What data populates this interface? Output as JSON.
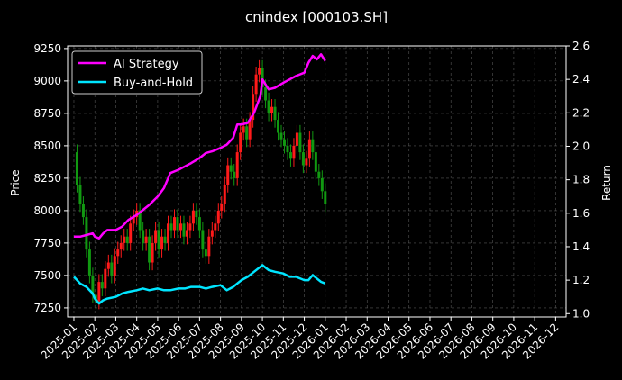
{
  "chart_data": {
    "type": "line",
    "title": "cnindex [000103.SH]",
    "ylabel_left": "Price",
    "ylabel_right": "Return",
    "left_ylim": [
      7180,
      9270
    ],
    "right_ylim": [
      0.98,
      2.6
    ],
    "left_yticks": [
      7250,
      7500,
      7750,
      8000,
      8250,
      8500,
      8750,
      9000,
      9250
    ],
    "right_yticks": [
      "1.0",
      "1.2",
      "1.4",
      "1.6",
      "1.8",
      "2.0",
      "2.2",
      "2.4",
      "2.6"
    ],
    "xlim": [
      -0.3,
      23.5
    ],
    "x_tick_labels": [
      "2025-01",
      "2025-02",
      "2025-03",
      "2025-04",
      "2025-05",
      "2025-06",
      "2025-07",
      "2025-08",
      "2025-09",
      "2025-10",
      "2025-11",
      "2025-12",
      "2026-01",
      "2026-02",
      "2026-03",
      "2026-04",
      "2026-05",
      "2026-06",
      "2026-07",
      "2026-08",
      "2026-09",
      "2026-10",
      "2026-11",
      "2026-12"
    ],
    "grid": true,
    "legend_position": "top-left",
    "colors": {
      "ai": "#ff00ff",
      "bh": "#00e5ff",
      "up": "#ff1a1a",
      "down": "#119911",
      "grid": "#555555"
    },
    "series": [
      {
        "name": "AI Strategy",
        "axis": "right",
        "color": "#ff00ff",
        "x": [
          0,
          0.3,
          0.6,
          0.9,
          1.0,
          1.2,
          1.4,
          1.6,
          2.0,
          2.3,
          2.6,
          3.0,
          3.3,
          3.6,
          4.0,
          4.3,
          4.6,
          5.0,
          5.3,
          5.6,
          6.0,
          6.3,
          6.6,
          7.0,
          7.3,
          7.6,
          7.8,
          8.0,
          8.3,
          8.6,
          8.9,
          9.0,
          9.2,
          9.3,
          9.6,
          10.0,
          10.3,
          10.6,
          11.0,
          11.2,
          11.4,
          11.6,
          11.8,
          12.0
        ],
        "values": [
          1.46,
          1.46,
          1.47,
          1.48,
          1.46,
          1.45,
          1.48,
          1.5,
          1.5,
          1.52,
          1.56,
          1.59,
          1.62,
          1.65,
          1.7,
          1.75,
          1.84,
          1.86,
          1.88,
          1.9,
          1.93,
          1.96,
          1.97,
          1.99,
          2.01,
          2.05,
          2.13,
          2.13,
          2.14,
          2.2,
          2.3,
          2.4,
          2.36,
          2.34,
          2.35,
          2.38,
          2.4,
          2.42,
          2.44,
          2.5,
          2.54,
          2.52,
          2.55,
          2.51
        ]
      },
      {
        "name": "Buy-and-Hold",
        "axis": "right",
        "color": "#00e5ff",
        "x": [
          0,
          0.3,
          0.6,
          0.9,
          1.0,
          1.2,
          1.4,
          1.6,
          2.0,
          2.3,
          2.6,
          3.0,
          3.3,
          3.6,
          4.0,
          4.3,
          4.6,
          5.0,
          5.3,
          5.6,
          6.0,
          6.3,
          6.6,
          7.0,
          7.3,
          7.6,
          7.8,
          8.0,
          8.3,
          8.6,
          8.9,
          9.0,
          9.2,
          9.3,
          9.6,
          10.0,
          10.3,
          10.6,
          11.0,
          11.2,
          11.4,
          11.6,
          11.8,
          12.0
        ],
        "values": [
          1.22,
          1.18,
          1.16,
          1.12,
          1.09,
          1.06,
          1.08,
          1.09,
          1.1,
          1.12,
          1.13,
          1.14,
          1.15,
          1.14,
          1.15,
          1.14,
          1.14,
          1.15,
          1.15,
          1.16,
          1.16,
          1.15,
          1.16,
          1.17,
          1.14,
          1.16,
          1.18,
          1.2,
          1.22,
          1.25,
          1.28,
          1.29,
          1.27,
          1.26,
          1.25,
          1.24,
          1.22,
          1.22,
          1.2,
          1.2,
          1.23,
          1.21,
          1.19,
          1.18
        ]
      },
      {
        "name": "price",
        "axis": "left",
        "x": [
          0,
          0.15,
          0.3,
          0.45,
          0.6,
          0.75,
          0.9,
          1.05,
          1.2,
          1.35,
          1.5,
          1.65,
          1.8,
          1.95,
          2.1,
          2.25,
          2.4,
          2.55,
          2.7,
          2.85,
          3.0,
          3.15,
          3.3,
          3.45,
          3.6,
          3.75,
          3.9,
          4.05,
          4.2,
          4.35,
          4.5,
          4.65,
          4.8,
          4.95,
          5.1,
          5.25,
          5.4,
          5.55,
          5.7,
          5.85,
          6.0,
          6.15,
          6.3,
          6.45,
          6.6,
          6.75,
          6.9,
          7.05,
          7.2,
          7.35,
          7.5,
          7.65,
          7.8,
          7.95,
          8.1,
          8.25,
          8.4,
          8.55,
          8.7,
          8.85,
          9.0,
          9.15,
          9.3,
          9.45,
          9.6,
          9.75,
          9.9,
          10.05,
          10.2,
          10.35,
          10.5,
          10.65,
          10.8,
          10.95,
          11.1,
          11.25,
          11.4,
          11.55,
          11.7,
          11.85,
          12.0
        ],
        "values": [
          8450,
          8200,
          8050,
          7950,
          7700,
          7500,
          7350,
          7300,
          7450,
          7400,
          7550,
          7600,
          7500,
          7650,
          7700,
          7750,
          7800,
          7750,
          7900,
          7950,
          8000,
          7850,
          7750,
          7800,
          7600,
          7750,
          7850,
          7700,
          7800,
          7750,
          7900,
          7850,
          7950,
          7850,
          7900,
          7800,
          7850,
          7900,
          8000,
          7950,
          7850,
          7700,
          7650,
          7800,
          7850,
          7900,
          8000,
          8050,
          8200,
          8350,
          8300,
          8250,
          8450,
          8600,
          8650,
          8550,
          8700,
          8900,
          9050,
          9100,
          8950,
          8850,
          8750,
          8800,
          8700,
          8600,
          8550,
          8500,
          8450,
          8400,
          8500,
          8600,
          8450,
          8350,
          8400,
          8550,
          8450,
          8300,
          8250,
          8150,
          8050
        ]
      }
    ]
  }
}
